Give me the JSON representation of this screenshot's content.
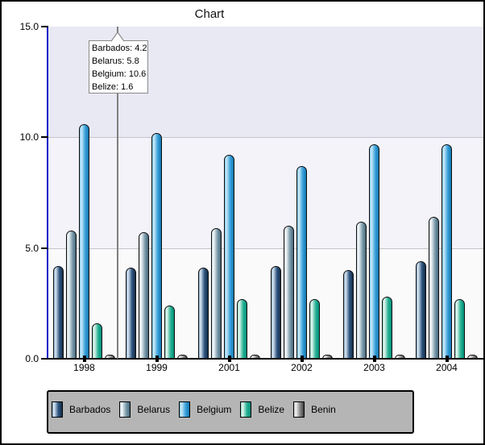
{
  "title": "Chart",
  "colors": {
    "y_axis": "#0018c8",
    "x_axis": "#000000",
    "crosshair": "#7f7f7f",
    "grid": "#c4c4cc",
    "bands_bottom_to_top": [
      "#fafafb",
      "#f3f3f9",
      "#e9e9f4"
    ],
    "legend_bg": "#b5b5b5",
    "tooltip_bg": "#ffffff",
    "tooltip_border": "#8a8a8a"
  },
  "y_axis": {
    "tick_labels": [
      "0.0",
      "5.0",
      "10.0",
      "15.0"
    ],
    "tick_values": [
      0,
      5,
      10,
      15
    ]
  },
  "chart_data": {
    "type": "bar",
    "title": "Chart",
    "categories": [
      "1998",
      "1999",
      "2001",
      "2002",
      "2003",
      "2004"
    ],
    "series": [
      {
        "name": "Barbados",
        "values": [
          4.2,
          4.1,
          4.1,
          4.2,
          4.0,
          4.4
        ],
        "gradient": [
          "#8fafc9",
          "#d9e7f3",
          "#2e5580",
          "#132e49"
        ]
      },
      {
        "name": "Belarus",
        "values": [
          5.8,
          5.7,
          5.9,
          6.0,
          6.2,
          6.4
        ],
        "gradient": [
          "#c9d9e2",
          "#f7fbfd",
          "#7e9dac",
          "#46687c"
        ]
      },
      {
        "name": "Belgium",
        "values": [
          10.6,
          10.2,
          9.2,
          8.7,
          9.7,
          9.7
        ],
        "gradient": [
          "#74c4ea",
          "#cdeafa",
          "#38a0da",
          "#1478b0"
        ]
      },
      {
        "name": "Belize",
        "values": [
          1.6,
          2.4,
          2.7,
          2.7,
          2.8,
          2.7
        ],
        "gradient": [
          "#8fd6c2",
          "#e9f8f2",
          "#28b294",
          "#00907a"
        ]
      },
      {
        "name": "Benin",
        "values": [
          0.2,
          0.2,
          0.2,
          0.2,
          0.2,
          0.2
        ],
        "gradient": [
          "#c4c4c4",
          "#f3f3f3",
          "#8a8a8a",
          "#404040"
        ]
      }
    ],
    "ylim": [
      0,
      15
    ],
    "grid": "horizontal",
    "legend_position": "bottom"
  },
  "tooltip": {
    "lines": [
      "Barbados: 4.2",
      "Belarus: 5.8",
      "Belgium: 10.6",
      "Belize: 1.6"
    ]
  },
  "legend": {
    "items": [
      "Barbados",
      "Belarus",
      "Belgium",
      "Belize",
      "Benin"
    ]
  }
}
